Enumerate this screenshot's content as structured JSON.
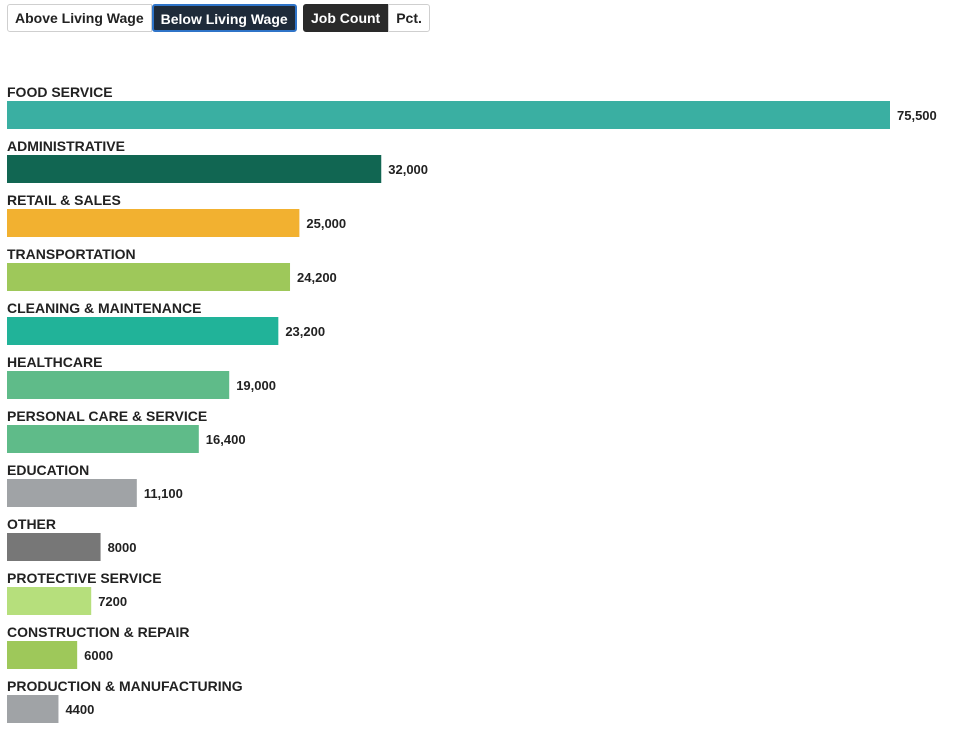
{
  "controls": {
    "wage_toggle": {
      "above_label": "Above Living Wage",
      "below_label": "Below Living Wage",
      "selected": "Below Living Wage"
    },
    "mode_toggle": {
      "count_label": "Job Count",
      "pct_label": "Pct.",
      "selected": "Job Count"
    }
  },
  "chart_data": {
    "type": "bar",
    "orientation": "horizontal",
    "categories": [
      "FOOD SERVICE",
      "ADMINISTRATIVE",
      "RETAIL & SALES",
      "TRANSPORTATION",
      "CLEANING & MAINTENANCE",
      "HEALTHCARE",
      "PERSONAL CARE & SERVICE",
      "EDUCATION",
      "OTHER",
      "PROTECTIVE SERVICE",
      "CONSTRUCTION & REPAIR",
      "PRODUCTION & MANUFACTURING"
    ],
    "values": [
      75500,
      32000,
      25000,
      24200,
      23200,
      19000,
      16400,
      11100,
      8000,
      7200,
      6000,
      4400
    ],
    "value_labels": [
      "75,500",
      "32,000",
      "25,000",
      "24,200",
      "23,200",
      "19,000",
      "16,400",
      "11,100",
      "8000",
      "7200",
      "6000",
      "4400"
    ],
    "colors": [
      "#3aafa2",
      "#116652",
      "#f2b130",
      "#9ec85a",
      "#21b399",
      "#5fbb89",
      "#5fbb89",
      "#a0a3a6",
      "#777777",
      "#b6df7c",
      "#9ec85a",
      "#a0a3a6"
    ],
    "xlim": [
      0,
      75500
    ],
    "grid": false,
    "title": "",
    "xlabel": "",
    "ylabel": ""
  }
}
